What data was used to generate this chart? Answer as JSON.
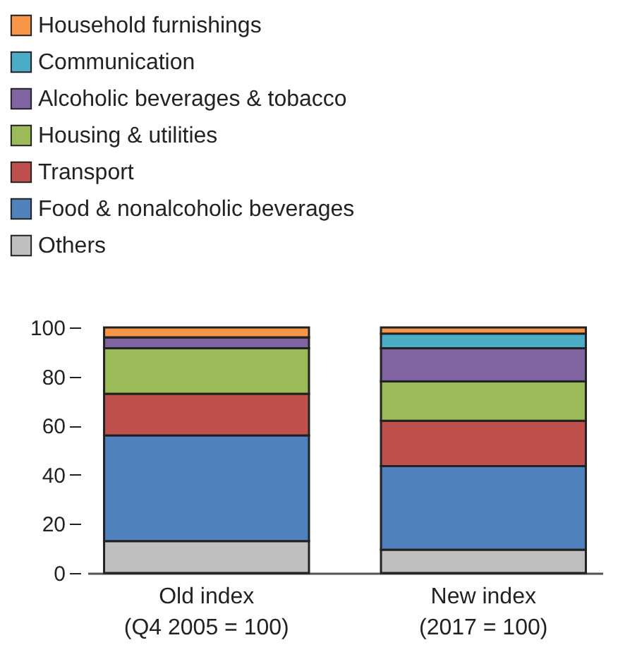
{
  "chart_data": {
    "type": "bar",
    "stacked": true,
    "categories": [
      "Old index\n(Q4 2005 = 100)",
      "New index\n(2017 = 100)"
    ],
    "series": [
      {
        "name": "Others",
        "color": "#bfbfbf",
        "values": [
          13,
          9.5
        ]
      },
      {
        "name": "Food & nonalcoholic beverages",
        "color": "#4f81bd",
        "values": [
          43,
          34
        ]
      },
      {
        "name": "Transport",
        "color": "#c0504d",
        "values": [
          17,
          18.5
        ]
      },
      {
        "name": "Housing & utilities",
        "color": "#9bbb59",
        "values": [
          18.5,
          16
        ]
      },
      {
        "name": "Alcoholic beverages & tobacco",
        "color": "#8064a2",
        "values": [
          4.5,
          13.5
        ]
      },
      {
        "name": "Communication",
        "color": "#4bacc6",
        "values": [
          0,
          6
        ]
      },
      {
        "name": "Household furnishings",
        "color": "#f79646",
        "values": [
          4,
          2.5
        ]
      }
    ],
    "ylim": [
      0,
      100
    ],
    "yticks": [
      0,
      20,
      40,
      60,
      80,
      100
    ],
    "grid": false,
    "legend": "top"
  }
}
